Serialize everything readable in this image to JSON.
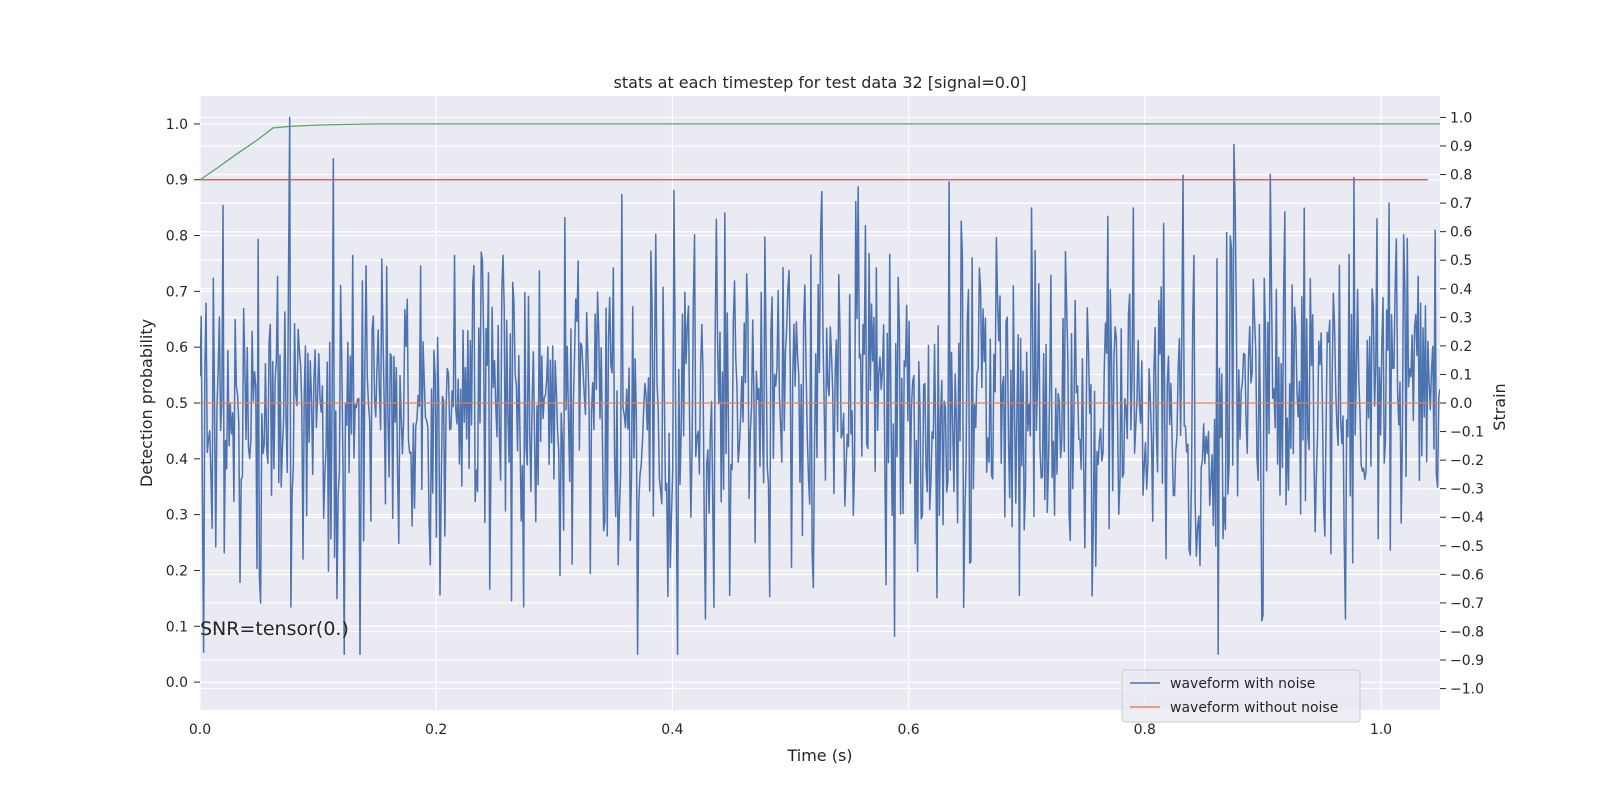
{
  "chart_data": {
    "type": "line",
    "title": "stats at each timestep for test data 32 [signal=0.0]",
    "xlabel": "Time (s)",
    "ylabel_left": "Detection probability",
    "ylabel_right": "Strain",
    "xlim": [
      0.0,
      1.05
    ],
    "ylim_left": [
      -0.05,
      1.05
    ],
    "ylim_right": [
      -1.075,
      1.075
    ],
    "x_ticks": [
      0.0,
      0.2,
      0.4,
      0.6,
      0.8,
      1.0
    ],
    "x_tick_labels": [
      "0.0",
      "0.2",
      "0.4",
      "0.6",
      "0.8",
      "1.0"
    ],
    "y_left_ticks": [
      0.0,
      0.1,
      0.2,
      0.3,
      0.4,
      0.5,
      0.6,
      0.7,
      0.8,
      0.9,
      1.0
    ],
    "y_left_tick_labels": [
      "0.0",
      "0.1",
      "0.2",
      "0.3",
      "0.4",
      "0.5",
      "0.6",
      "0.7",
      "0.8",
      "0.9",
      "1.0"
    ],
    "y_right_ticks": [
      -1.0,
      -0.9,
      -0.8,
      -0.7,
      -0.6,
      -0.5,
      -0.4,
      -0.3,
      -0.2,
      -0.1,
      0.0,
      0.1,
      0.2,
      0.3,
      0.4,
      0.5,
      0.6,
      0.7,
      0.8,
      0.9,
      1.0
    ],
    "y_right_tick_labels": [
      "−1.0",
      "−0.9",
      "−0.8",
      "−0.7",
      "−0.6",
      "−0.5",
      "−0.4",
      "−0.3",
      "−0.2",
      "−0.1",
      "0.0",
      "0.1",
      "0.2",
      "0.3",
      "0.4",
      "0.5",
      "0.6",
      "0.7",
      "0.8",
      "0.9",
      "1.0"
    ],
    "grid": true,
    "legend_position": "lower-right",
    "annotation": "SNR=tensor(0.)",
    "noise_seed": 32,
    "noise_samples": 1024,
    "series": [
      {
        "name": "waveform with noise",
        "axis": "right",
        "color": "#4c72b0",
        "kind": "noise",
        "mean": -0.02,
        "std": 0.3,
        "range": [
          -0.88,
          1.0
        ],
        "x_range": [
          0.0,
          1.05
        ]
      },
      {
        "name": "waveform without noise",
        "axis": "right",
        "color": "#dd8452",
        "x": [
          0.0,
          1.05
        ],
        "values": [
          0.0,
          0.0
        ]
      },
      {
        "axis": "left",
        "color": "#55a868",
        "x": [
          0.0,
          0.016,
          0.031,
          0.047,
          0.062,
          0.08,
          0.1,
          0.12,
          0.15,
          1.05
        ],
        "values": [
          0.9,
          0.923,
          0.946,
          0.969,
          0.993,
          0.996,
          0.998,
          0.999,
          1.0,
          1.0
        ]
      },
      {
        "axis": "left",
        "color": "#c44e52",
        "x": [
          0.0,
          1.04
        ],
        "values": [
          0.9,
          0.9
        ]
      }
    ]
  }
}
